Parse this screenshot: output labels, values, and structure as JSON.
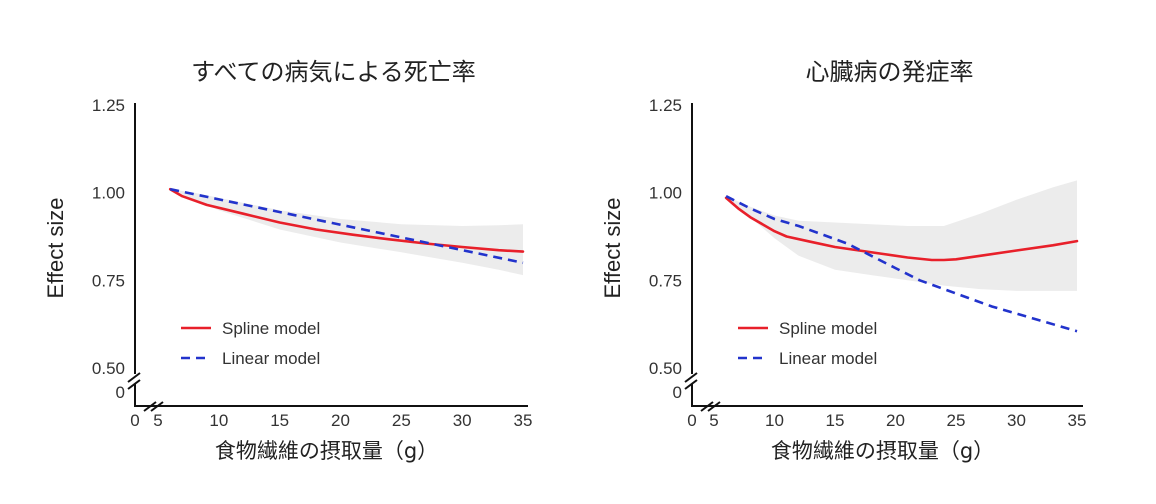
{
  "chart_data": [
    {
      "type": "line",
      "title": "すべての病気による死亡率",
      "xlabel": "食物繊維の摂取量（g）",
      "ylabel": "Effect size",
      "x_ticks": [
        "0",
        "5",
        "10",
        "15",
        "20",
        "25",
        "30",
        "35"
      ],
      "y_ticks": [
        "0",
        "0.50",
        "0.75",
        "1.00",
        "1.25"
      ],
      "ylim": [
        0.5,
        1.25
      ],
      "xlim": [
        5,
        35
      ],
      "axis_break": true,
      "legend_position": "bottom-left",
      "series": [
        {
          "name": "Spline model",
          "style": "solid",
          "color": "#e8202a",
          "x": [
            6,
            7,
            9,
            12,
            15,
            18,
            21,
            24,
            27,
            30,
            33,
            35
          ],
          "y": [
            1.01,
            0.99,
            0.965,
            0.94,
            0.915,
            0.895,
            0.88,
            0.867,
            0.855,
            0.845,
            0.836,
            0.832
          ]
        },
        {
          "name": "Linear model",
          "style": "dashed",
          "color": "#2233cc",
          "x": [
            6,
            35
          ],
          "y": [
            1.01,
            0.8
          ]
        }
      ],
      "confidence_band": {
        "color": "#ececec",
        "x": [
          6,
          8,
          10,
          15,
          20,
          25,
          30,
          33,
          35
        ],
        "upper": [
          1.01,
          1.0,
          0.985,
          0.95,
          0.925,
          0.91,
          0.905,
          0.907,
          0.91
        ],
        "lower": [
          1.01,
          0.98,
          0.95,
          0.895,
          0.858,
          0.83,
          0.8,
          0.78,
          0.765
        ]
      }
    },
    {
      "type": "line",
      "title": "心臓病の発症率",
      "xlabel": "食物繊維の摂取量（g）",
      "ylabel": "Effect size",
      "x_ticks": [
        "0",
        "5",
        "10",
        "15",
        "20",
        "25",
        "30",
        "35"
      ],
      "y_ticks": [
        "0",
        "0.50",
        "0.75",
        "1.00",
        "1.25"
      ],
      "ylim": [
        0.5,
        1.25
      ],
      "xlim": [
        5,
        35
      ],
      "axis_break": true,
      "legend_position": "bottom-left",
      "series": [
        {
          "name": "Spline model",
          "style": "solid",
          "color": "#e8202a",
          "x": [
            6,
            7,
            8,
            9,
            10,
            11,
            13,
            15,
            17,
            19,
            21,
            23,
            24,
            25,
            27,
            30,
            33,
            35
          ],
          "y": [
            0.985,
            0.955,
            0.93,
            0.91,
            0.89,
            0.875,
            0.86,
            0.845,
            0.835,
            0.825,
            0.815,
            0.808,
            0.808,
            0.81,
            0.82,
            0.835,
            0.85,
            0.862
          ]
        },
        {
          "name": "Linear model",
          "style": "dashed",
          "color": "#2233cc",
          "x": [
            6,
            8,
            10,
            12,
            14,
            16,
            18,
            20,
            22,
            24,
            26,
            28,
            30,
            32,
            35
          ],
          "y": [
            0.99,
            0.955,
            0.925,
            0.905,
            0.88,
            0.855,
            0.82,
            0.785,
            0.75,
            0.725,
            0.7,
            0.675,
            0.655,
            0.635,
            0.605
          ]
        }
      ],
      "confidence_band": {
        "color": "#ececec",
        "x": [
          6,
          8,
          10,
          12,
          15,
          18,
          21,
          24,
          27,
          30,
          33,
          35
        ],
        "upper": [
          0.99,
          0.96,
          0.935,
          0.92,
          0.915,
          0.91,
          0.905,
          0.905,
          0.94,
          0.98,
          1.015,
          1.035
        ],
        "lower": [
          0.99,
          0.93,
          0.87,
          0.82,
          0.78,
          0.765,
          0.75,
          0.735,
          0.725,
          0.72,
          0.72,
          0.72
        ]
      }
    }
  ]
}
